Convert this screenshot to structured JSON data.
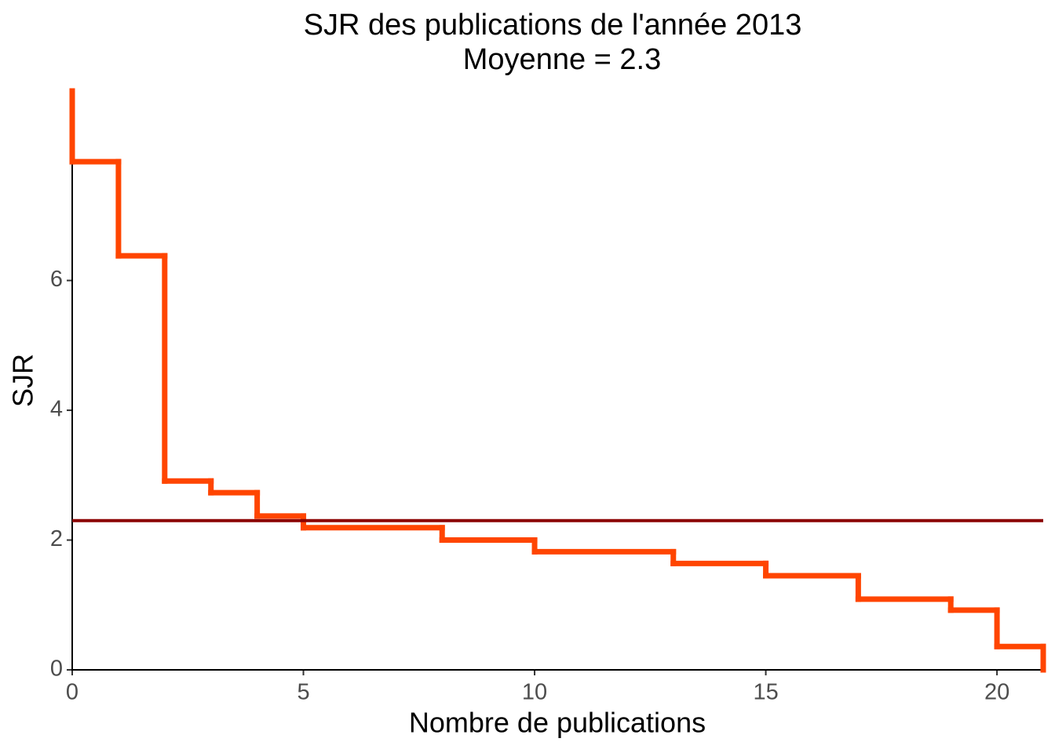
{
  "chart_data": {
    "type": "step",
    "title": "SJR des publications de l'année 2013",
    "subtitle": "Moyenne = 2.3",
    "x_label": "Nombre de publications",
    "y_label": "SJR",
    "x": [
      0,
      0,
      1,
      2,
      3,
      4,
      5,
      8,
      10,
      13,
      15,
      17,
      19,
      20,
      21
    ],
    "values": [
      8.92,
      7.83,
      6.38,
      2.91,
      2.73,
      2.37,
      2.19,
      2.0,
      1.82,
      1.64,
      1.45,
      1.09,
      0.92,
      0.36,
      0
    ],
    "color": "#ff4500",
    "hline": {
      "value": 2.3,
      "color": "#8b0000"
    },
    "xlim": [
      0,
      21
    ],
    "ylim": [
      0,
      8.92
    ],
    "xticks": [
      0,
      5,
      10,
      15,
      20
    ],
    "yticks": [
      0,
      2,
      4,
      6
    ],
    "grid": false
  }
}
